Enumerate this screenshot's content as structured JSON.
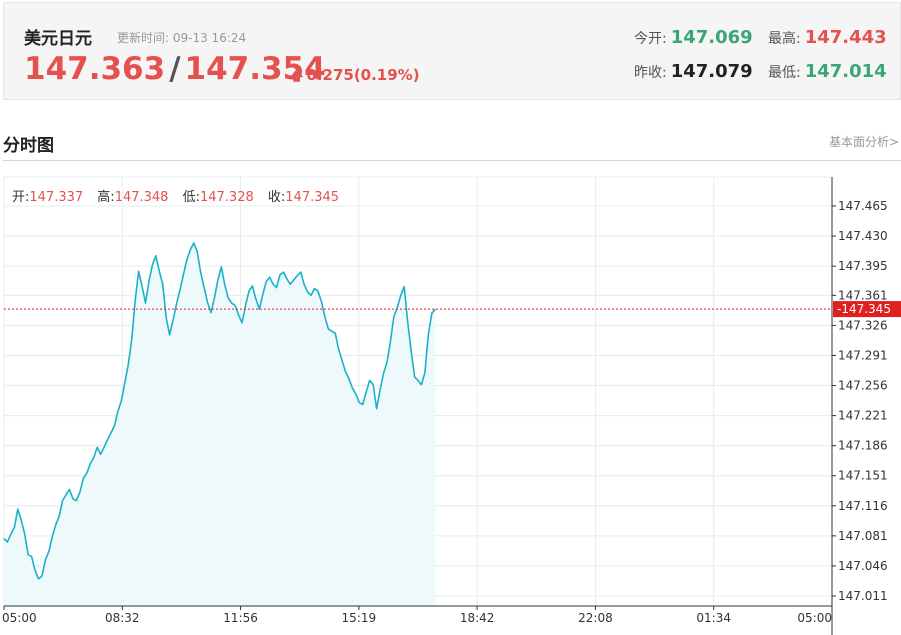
{
  "quote": {
    "name": "美元日元",
    "update_label": "更新时间:",
    "update_time": "09-13 16:24",
    "bid": "147.363",
    "separator": "/",
    "ask": "147.354",
    "change": "0.275(0.19%)",
    "up_arrow": "up-arrow-icon",
    "open_label": "今开:",
    "open_value": "147.069",
    "high_label": "最高:",
    "high_value": "147.443",
    "prev_close_label": "昨收:",
    "prev_close_value": "147.079",
    "low_label": "最低:",
    "low_value": "147.014"
  },
  "section": {
    "title": "分时图",
    "fundamental_link": "基本面分析>"
  },
  "ohlc": {
    "open_label": "开:",
    "open_value": "147.337",
    "high_label": "高:",
    "high_value": "147.348",
    "low_label": "低:",
    "low_value": "147.328",
    "close_label": "收:",
    "close_value": "147.345"
  },
  "colors": {
    "line": "#1ab1c8",
    "area": "#eef9fc",
    "grid": "#e3ecf1",
    "current_price": "#e02020",
    "axis": "#333333"
  },
  "chart_data": {
    "type": "area",
    "x_ticks": [
      "05:00",
      "08:32",
      "11:56",
      "15:19",
      "18:42",
      "22:08",
      "01:34",
      "05:00"
    ],
    "y_ticks": [
      "147.465",
      "147.430",
      "147.395",
      "147.361",
      "147.326",
      "147.291",
      "147.256",
      "147.221",
      "147.186",
      "147.151",
      "147.116",
      "147.081",
      "147.046",
      "147.011"
    ],
    "ylim": [
      147.0,
      147.48
    ],
    "current_price": "147.345",
    "x_unit": "minutes since 05:00 (axis spans 05:00 to next-day 05:00)",
    "xlim": [
      0,
      1440
    ],
    "series": [
      {
        "values": [
          [
            0,
            147.078
          ],
          [
            6,
            147.074
          ],
          [
            12,
            147.083
          ],
          [
            18,
            147.091
          ],
          [
            24,
            147.112
          ],
          [
            30,
            147.099
          ],
          [
            36,
            147.083
          ],
          [
            42,
            147.059
          ],
          [
            48,
            147.057
          ],
          [
            54,
            147.041
          ],
          [
            60,
            147.031
          ],
          [
            66,
            147.034
          ],
          [
            72,
            147.053
          ],
          [
            78,
            147.063
          ],
          [
            84,
            147.08
          ],
          [
            90,
            147.094
          ],
          [
            96,
            147.104
          ],
          [
            102,
            147.122
          ],
          [
            108,
            147.129
          ],
          [
            114,
            147.135
          ],
          [
            120,
            147.124
          ],
          [
            126,
            147.122
          ],
          [
            132,
            147.132
          ],
          [
            138,
            147.148
          ],
          [
            144,
            147.154
          ],
          [
            150,
            147.165
          ],
          [
            156,
            147.172
          ],
          [
            162,
            147.184
          ],
          [
            168,
            147.176
          ],
          [
            174,
            147.184
          ],
          [
            180,
            147.193
          ],
          [
            186,
            147.201
          ],
          [
            192,
            147.209
          ],
          [
            198,
            147.226
          ],
          [
            204,
            147.238
          ],
          [
            210,
            147.259
          ],
          [
            216,
            147.28
          ],
          [
            222,
            147.309
          ],
          [
            228,
            147.354
          ],
          [
            234,
            147.389
          ],
          [
            240,
            147.372
          ],
          [
            246,
            147.352
          ],
          [
            252,
            147.377
          ],
          [
            258,
            147.396
          ],
          [
            264,
            147.407
          ],
          [
            270,
            147.389
          ],
          [
            276,
            147.374
          ],
          [
            282,
            147.335
          ],
          [
            288,
            147.315
          ],
          [
            294,
            147.332
          ],
          [
            300,
            147.351
          ],
          [
            306,
            147.367
          ],
          [
            312,
            147.385
          ],
          [
            318,
            147.402
          ],
          [
            324,
            147.414
          ],
          [
            330,
            147.422
          ],
          [
            336,
            147.412
          ],
          [
            342,
            147.388
          ],
          [
            348,
            147.37
          ],
          [
            354,
            147.353
          ],
          [
            360,
            147.341
          ],
          [
            366,
            147.358
          ],
          [
            372,
            147.379
          ],
          [
            378,
            147.394
          ],
          [
            384,
            147.373
          ],
          [
            390,
            147.358
          ],
          [
            396,
            147.352
          ],
          [
            402,
            147.349
          ],
          [
            408,
            147.338
          ],
          [
            414,
            147.329
          ],
          [
            420,
            147.349
          ],
          [
            426,
            147.366
          ],
          [
            432,
            147.372
          ],
          [
            438,
            147.357
          ],
          [
            444,
            147.345
          ],
          [
            450,
            147.362
          ],
          [
            456,
            147.377
          ],
          [
            462,
            147.382
          ],
          [
            468,
            147.374
          ],
          [
            474,
            147.37
          ],
          [
            480,
            147.385
          ],
          [
            486,
            147.388
          ],
          [
            492,
            147.38
          ],
          [
            498,
            147.374
          ],
          [
            504,
            147.379
          ],
          [
            510,
            147.384
          ],
          [
            516,
            147.388
          ],
          [
            522,
            147.374
          ],
          [
            528,
            147.365
          ],
          [
            534,
            147.361
          ],
          [
            540,
            147.369
          ],
          [
            546,
            147.366
          ],
          [
            552,
            147.354
          ],
          [
            558,
            147.336
          ],
          [
            564,
            147.322
          ],
          [
            570,
            147.319
          ],
          [
            576,
            147.317
          ],
          [
            582,
            147.298
          ],
          [
            588,
            147.285
          ],
          [
            594,
            147.272
          ],
          [
            600,
            147.264
          ],
          [
            606,
            147.253
          ],
          [
            612,
            147.246
          ],
          [
            618,
            147.236
          ],
          [
            624,
            147.234
          ],
          [
            630,
            147.249
          ],
          [
            636,
            147.262
          ],
          [
            642,
            147.257
          ],
          [
            648,
            147.229
          ],
          [
            654,
            147.251
          ],
          [
            660,
            147.27
          ],
          [
            666,
            147.283
          ],
          [
            672,
            147.307
          ],
          [
            678,
            147.336
          ],
          [
            684,
            147.347
          ],
          [
            690,
            147.361
          ],
          [
            696,
            147.371
          ],
          [
            702,
            147.331
          ],
          [
            708,
            147.297
          ],
          [
            714,
            147.266
          ],
          [
            720,
            147.262
          ],
          [
            726,
            147.257
          ],
          [
            732,
            147.271
          ],
          [
            738,
            147.315
          ],
          [
            744,
            147.34
          ],
          [
            750,
            147.345
          ]
        ]
      }
    ]
  }
}
